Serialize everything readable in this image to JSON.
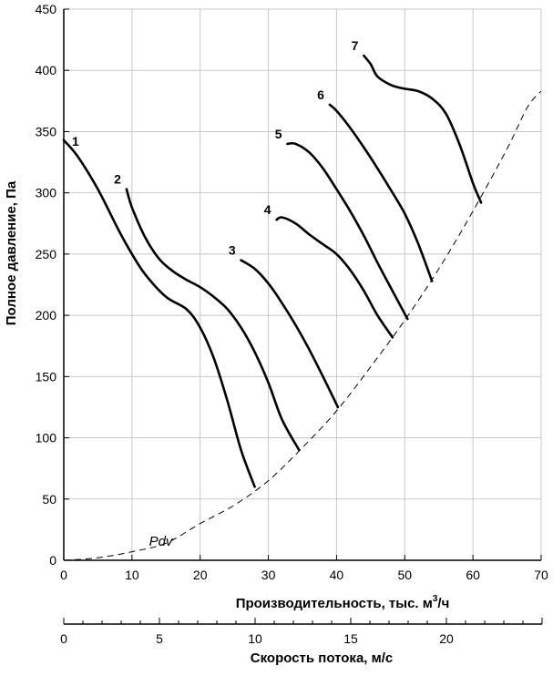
{
  "chart_data": {
    "type": "line",
    "ylabel": "Полное давление, Па",
    "xlabel_main": "Производительность, тыс. м",
    "xlabel_sup": "3",
    "xlabel_tail": "/ч",
    "xlabel_secondary": "Скорость потока, м/с",
    "xlim": [
      0,
      70
    ],
    "ylim": [
      0,
      450
    ],
    "x_ticks": [
      0,
      10,
      20,
      30,
      40,
      50,
      60,
      70
    ],
    "y_ticks": [
      0,
      50,
      100,
      150,
      200,
      250,
      300,
      350,
      400,
      450
    ],
    "secondary_xlim": [
      0,
      25
    ],
    "secondary_ticks": [
      0,
      5,
      10,
      15,
      20
    ],
    "grid": true,
    "series": [
      {
        "name": "1",
        "x": [
          0,
          2,
          5,
          8,
          10,
          12,
          15,
          18,
          20,
          22,
          24,
          26,
          28
        ],
        "y": [
          343,
          330,
          303,
          270,
          250,
          233,
          215,
          205,
          190,
          165,
          130,
          90,
          60
        ]
      },
      {
        "name": "2",
        "x": [
          9.2,
          10,
          12,
          14,
          16,
          18,
          20,
          22,
          24,
          26,
          28,
          30,
          32,
          34.5
        ],
        "y": [
          303,
          288,
          263,
          246,
          236,
          229,
          223,
          215,
          205,
          190,
          170,
          145,
          115,
          90
        ]
      },
      {
        "name": "3",
        "x": [
          26,
          28,
          30,
          32,
          34,
          36,
          38,
          40.2
        ],
        "y": [
          245,
          238,
          226,
          210,
          192,
          172,
          150,
          125
        ]
      },
      {
        "name": "4",
        "x": [
          31.2,
          32,
          34,
          36,
          38,
          40,
          42,
          44,
          46,
          48.2
        ],
        "y": [
          278,
          280,
          275,
          266,
          258,
          250,
          237,
          220,
          200,
          182
        ]
      },
      {
        "name": "5",
        "x": [
          32.8,
          34,
          36,
          38,
          40,
          42,
          44,
          46,
          48,
          50.4
        ],
        "y": [
          340,
          340,
          333,
          320,
          303,
          285,
          265,
          243,
          222,
          197
        ]
      },
      {
        "name": "6",
        "x": [
          39,
          40,
          42,
          44,
          46,
          48,
          50,
          52,
          54
        ],
        "y": [
          372,
          367,
          353,
          337,
          320,
          302,
          283,
          258,
          228
        ]
      },
      {
        "name": "7",
        "x": [
          44,
          45,
          46,
          48,
          50,
          52,
          54,
          56,
          58,
          60,
          61.2
        ],
        "y": [
          412,
          405,
          395,
          388,
          385,
          383,
          377,
          365,
          340,
          308,
          292
        ]
      }
    ],
    "reference_curve": {
      "label": "Pdv",
      "style": "dashed",
      "x": [
        0,
        5,
        10,
        15,
        20,
        25,
        30,
        35,
        40,
        45,
        50,
        55,
        60,
        65,
        68,
        70
      ],
      "y": [
        0,
        2,
        7,
        14,
        30,
        45,
        65,
        92,
        122,
        158,
        196,
        238,
        285,
        336,
        370,
        383
      ]
    }
  }
}
